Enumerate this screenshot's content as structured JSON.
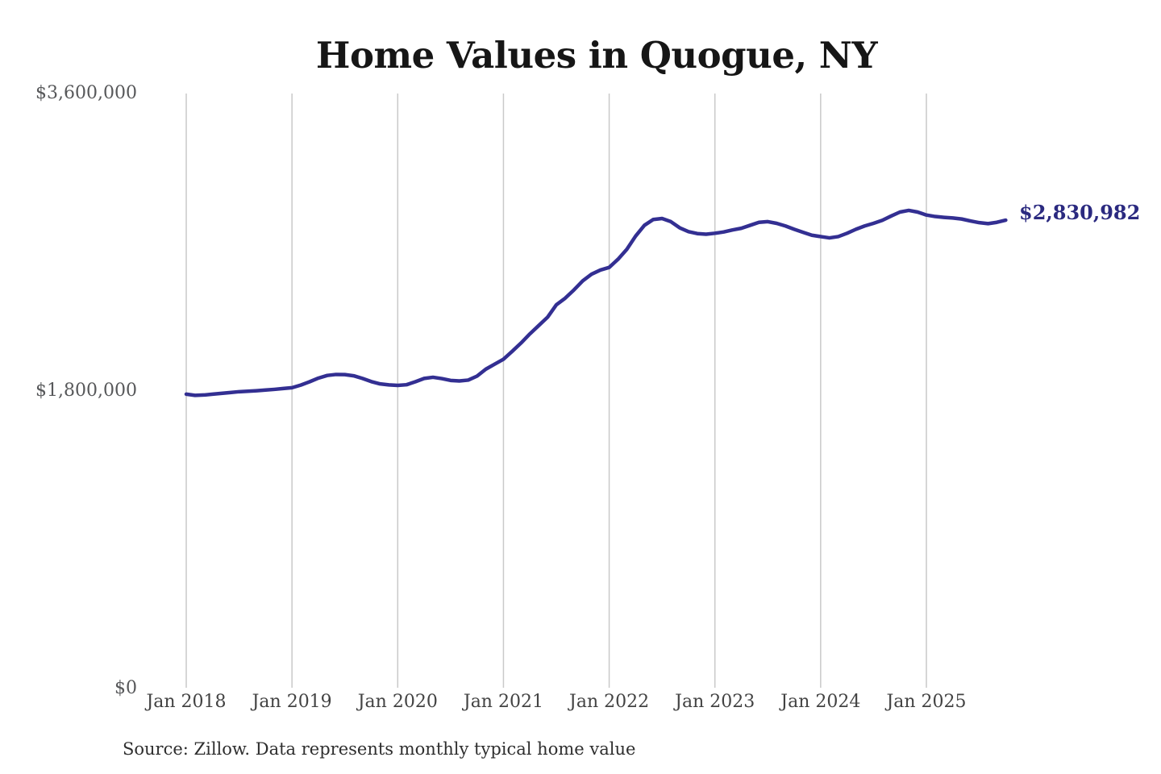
{
  "title": "Home Values in Quogue, NY",
  "end_label": "$2,830,982",
  "source_note": "Source: Zillow. Data represents monthly typical home value",
  "colors": {
    "line": "#332f92",
    "end_label": "#2b2a80",
    "gridline": "#c9c9c9",
    "title": "#161616",
    "y_axis_label": "#57585a",
    "x_axis_label": "#434343",
    "source": "#2e2e2e",
    "background": "#ffffff"
  },
  "chart_data": {
    "type": "line",
    "title": "Home Values in Quogue, NY",
    "xlabel": "",
    "ylabel": "",
    "ylim": [
      0,
      3600000
    ],
    "y_tick_labels": [
      "$3,600,000",
      "$1,800,000",
      "$0"
    ],
    "y_tick_values": [
      3600000,
      1800000,
      0
    ],
    "x_tick_labels": [
      "Jan 2018",
      "Jan 2019",
      "Jan 2020",
      "Jan 2021",
      "Jan 2022",
      "Jan 2023",
      "Jan 2024",
      "Jan 2025"
    ],
    "grid": "vertical-only",
    "legend": "none",
    "annotation_end_value": 2830982,
    "series": [
      {
        "name": "Monthly typical home value",
        "start_month": "Jan 2018",
        "end_month": "Oct 2025",
        "interval": "monthly",
        "values": [
          1781000,
          1774000,
          1776000,
          1781000,
          1786000,
          1791000,
          1796000,
          1799000,
          1802000,
          1806000,
          1810000,
          1815000,
          1820000,
          1836000,
          1856000,
          1878000,
          1894000,
          1900000,
          1899000,
          1892000,
          1876000,
          1857000,
          1843000,
          1837000,
          1834000,
          1838000,
          1856000,
          1876000,
          1883000,
          1875000,
          1864000,
          1861000,
          1866000,
          1890000,
          1932000,
          1962000,
          1992000,
          2040000,
          2090000,
          2145000,
          2195000,
          2245000,
          2320000,
          2360000,
          2410000,
          2465000,
          2505000,
          2530000,
          2546000,
          2595000,
          2655000,
          2735000,
          2800000,
          2835000,
          2841000,
          2822000,
          2785000,
          2762000,
          2750000,
          2746000,
          2752000,
          2760000,
          2772000,
          2782000,
          2800000,
          2818000,
          2822000,
          2812000,
          2796000,
          2776000,
          2758000,
          2740000,
          2732000,
          2724000,
          2732000,
          2752000,
          2776000,
          2796000,
          2812000,
          2830000,
          2856000,
          2880000,
          2890000,
          2880000,
          2862000,
          2853000,
          2848000,
          2844000,
          2838000,
          2826000,
          2816000,
          2810000,
          2818000,
          2830982
        ]
      }
    ]
  }
}
